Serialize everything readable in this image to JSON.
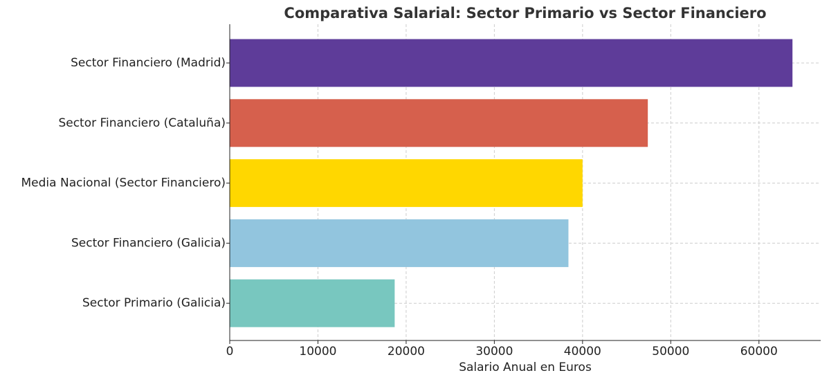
{
  "chart_data": {
    "type": "barh",
    "title": "Comparativa Salarial: Sector Primario vs Sector Financiero",
    "xlabel": "Salario Anual en Euros",
    "categories": [
      "Sector Financiero (Madrid)",
      "Sector Financiero (Cataluña)",
      "Media Nacional (Sector Financiero)",
      "Sector Financiero (Galicia)",
      "Sector Primario (Galicia)"
    ],
    "values": [
      63800,
      47400,
      40000,
      38400,
      18700
    ],
    "colors": [
      "#5e3c99",
      "#d6604d",
      "#ffd700",
      "#92c5de",
      "#78c7bf"
    ],
    "xlim": [
      0,
      67000
    ],
    "xticks": [
      0,
      10000,
      20000,
      30000,
      40000,
      50000,
      60000
    ],
    "grid": true
  }
}
